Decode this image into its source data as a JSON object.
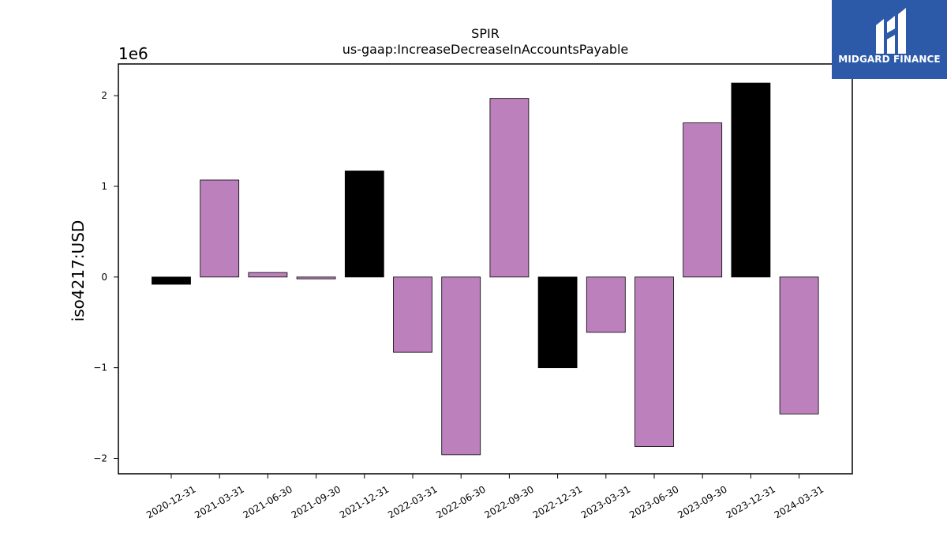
{
  "chart_data": {
    "type": "bar",
    "title": "SPIR",
    "subtitle": "us-gaap:IncreaseDecreaseInAccountsPayable",
    "ylabel": "iso4217:USD",
    "y_offset_label": "1e6",
    "ylim": [
      -2.17,
      2.35
    ],
    "yticks": [
      -2,
      -1,
      0,
      1,
      2
    ],
    "ytick_labels": [
      "−2",
      "−1",
      "0",
      "1",
      "2"
    ],
    "grid": false,
    "categories": [
      "2020-12-31",
      "2021-03-31",
      "2021-06-30",
      "2021-09-30",
      "2021-12-31",
      "2022-03-31",
      "2022-06-30",
      "2022-09-30",
      "2022-12-31",
      "2023-03-31",
      "2023-06-30",
      "2023-09-30",
      "2023-12-31",
      "2024-03-31"
    ],
    "values": [
      -0.08,
      1.07,
      0.05,
      -0.02,
      1.17,
      -0.83,
      -1.96,
      1.97,
      -1.0,
      -0.61,
      -1.87,
      1.7,
      2.14,
      -1.51
    ],
    "bar_colors": [
      "#000000",
      "#bc80bd",
      "#bc80bd",
      "#bc80bd",
      "#000000",
      "#bc80bd",
      "#bc80bd",
      "#bc80bd",
      "#000000",
      "#bc80bd",
      "#bc80bd",
      "#bc80bd",
      "#000000",
      "#bc80bd"
    ]
  },
  "logo": {
    "name": "MIDGARD FINANCE",
    "color": "#2c5aa9"
  }
}
